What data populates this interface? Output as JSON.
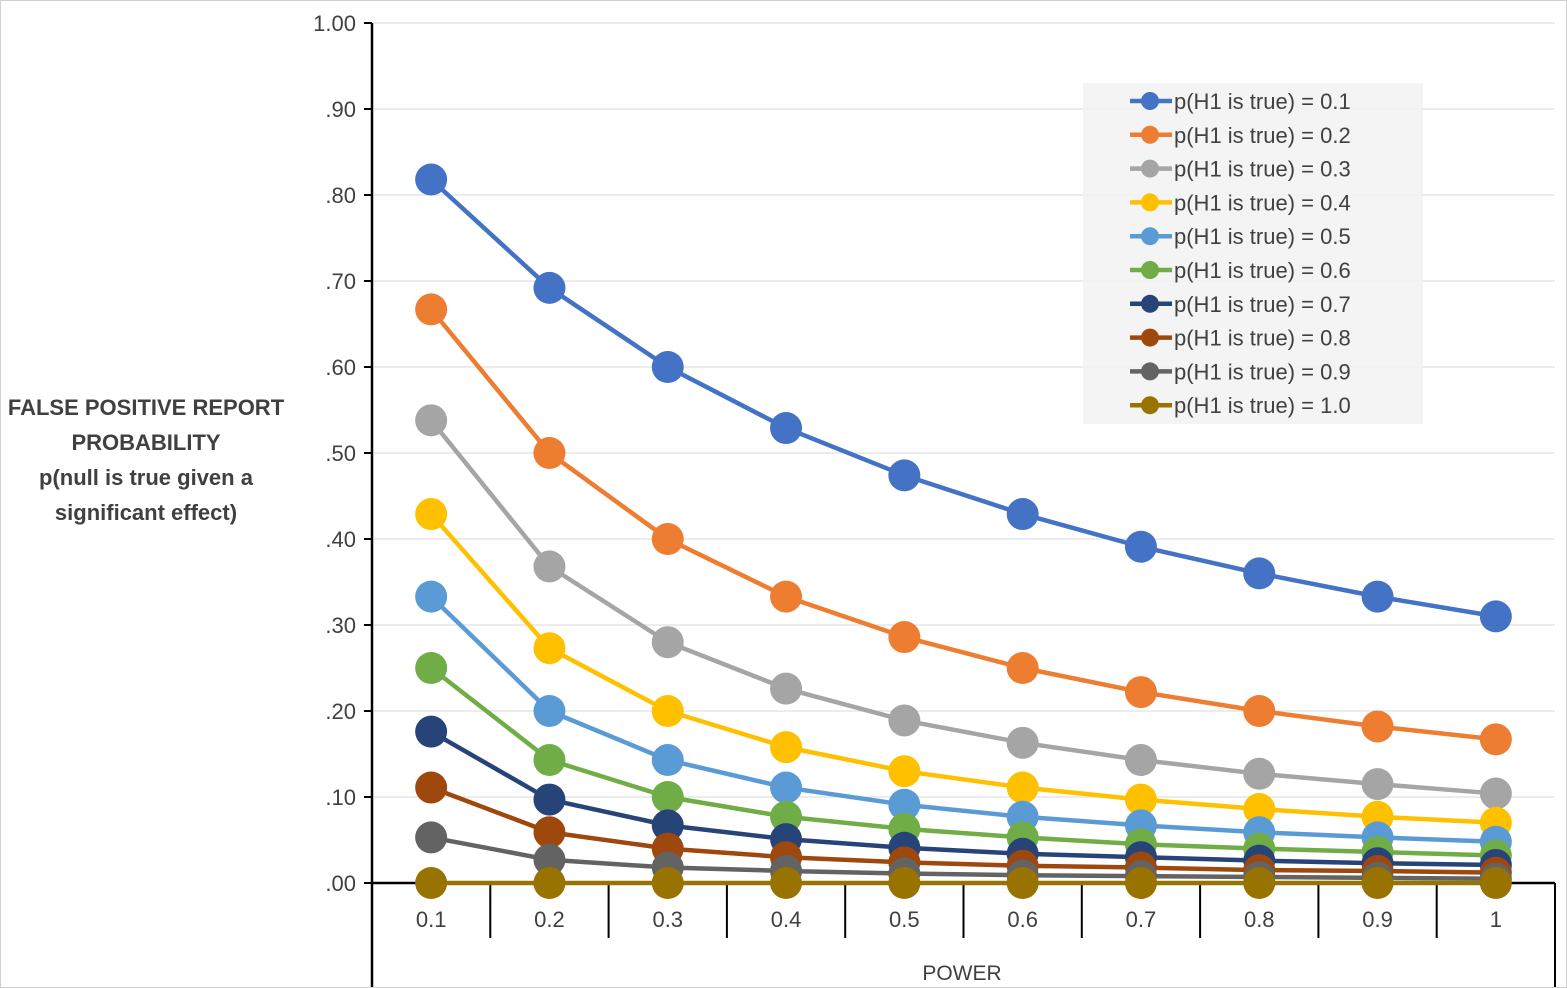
{
  "chart_data": {
    "type": "line",
    "title": "",
    "ylabel_lines": [
      "FALSE POSITIVE REPORT",
      "PROBABILITY",
      "p(null is true given a",
      "significant effect)"
    ],
    "xlabel": "POWER",
    "categories": [
      "0.1",
      "0.2",
      "0.3",
      "0.4",
      "0.5",
      "0.6",
      "0.7",
      "0.8",
      "0.9",
      "1"
    ],
    "y_ticks": [
      {
        "value": 0.0,
        "label": ".00"
      },
      {
        "value": 0.1,
        "label": ".10"
      },
      {
        "value": 0.2,
        "label": ".20"
      },
      {
        "value": 0.3,
        "label": ".30"
      },
      {
        "value": 0.4,
        "label": ".40"
      },
      {
        "value": 0.5,
        "label": ".50"
      },
      {
        "value": 0.6,
        "label": ".60"
      },
      {
        "value": 0.7,
        "label": ".70"
      },
      {
        "value": 0.8,
        "label": ".80"
      },
      {
        "value": 0.9,
        "label": ".90"
      },
      {
        "value": 1.0,
        "label": "1.00"
      }
    ],
    "ylim": [
      0,
      1
    ],
    "grid": true,
    "legend_position": "top-right",
    "series": [
      {
        "name": "p(H1 is true) = 0.1",
        "color": "#4472C4",
        "values": [
          0.818,
          0.692,
          0.6,
          0.529,
          0.474,
          0.429,
          0.391,
          0.36,
          0.333,
          0.31
        ]
      },
      {
        "name": "p(H1 is true) = 0.2",
        "color": "#ED7D31",
        "values": [
          0.667,
          0.5,
          0.4,
          0.333,
          0.286,
          0.25,
          0.222,
          0.2,
          0.182,
          0.167
        ]
      },
      {
        "name": "p(H1 is true) = 0.3",
        "color": "#A5A5A5",
        "values": [
          0.538,
          0.368,
          0.28,
          0.226,
          0.189,
          0.163,
          0.143,
          0.127,
          0.115,
          0.104
        ]
      },
      {
        "name": "p(H1 is true) = 0.4",
        "color": "#FFC000",
        "values": [
          0.429,
          0.273,
          0.2,
          0.158,
          0.13,
          0.111,
          0.097,
          0.086,
          0.077,
          0.07
        ]
      },
      {
        "name": "p(H1 is true) = 0.5",
        "color": "#5B9BD5",
        "values": [
          0.333,
          0.2,
          0.143,
          0.111,
          0.091,
          0.077,
          0.067,
          0.059,
          0.053,
          0.048
        ]
      },
      {
        "name": "p(H1 is true) = 0.6",
        "color": "#70AD47",
        "values": [
          0.25,
          0.143,
          0.1,
          0.077,
          0.063,
          0.053,
          0.045,
          0.04,
          0.036,
          0.032
        ]
      },
      {
        "name": "p(H1 is true) = 0.7",
        "color": "#264478",
        "values": [
          0.176,
          0.097,
          0.067,
          0.051,
          0.041,
          0.034,
          0.03,
          0.026,
          0.023,
          0.021
        ]
      },
      {
        "name": "p(H1 is true) = 0.8",
        "color": "#9E480E",
        "values": [
          0.111,
          0.059,
          0.04,
          0.03,
          0.024,
          0.02,
          0.018,
          0.015,
          0.014,
          0.012
        ]
      },
      {
        "name": "p(H1 is true) = 0.9",
        "color": "#636363",
        "values": [
          0.053,
          0.027,
          0.018,
          0.014,
          0.011,
          0.009,
          0.008,
          0.007,
          0.006,
          0.005
        ]
      },
      {
        "name": "p(H1 is true) = 1.0",
        "color": "#997300",
        "values": [
          0.0,
          0.0,
          0.0,
          0.0,
          0.0,
          0.0,
          0.0,
          0.0,
          0.0,
          0.0
        ]
      }
    ]
  }
}
